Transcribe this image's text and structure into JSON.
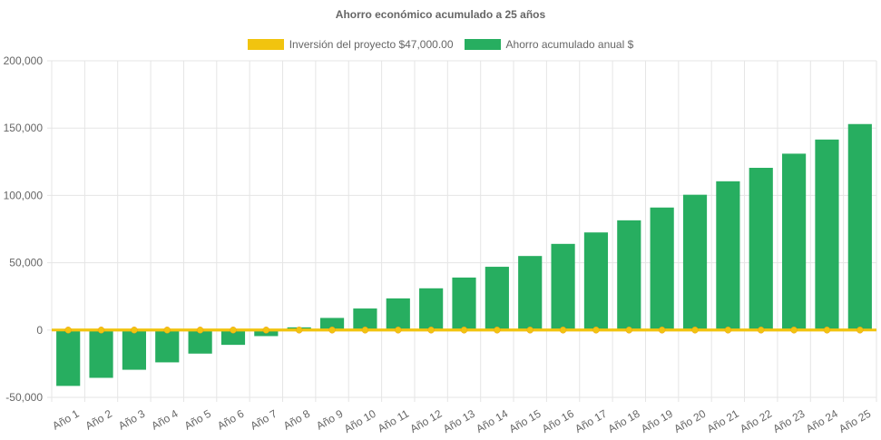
{
  "chart_data": {
    "type": "bar",
    "title": "Ahorro económico acumulado a 25 años",
    "categories": [
      "Año 1",
      "Año 2",
      "Año 3",
      "Año 4",
      "Año 5",
      "Año 6",
      "Año 7",
      "Año 8",
      "Año 9",
      "Año 10",
      "Año 11",
      "Año 12",
      "Año 13",
      "Año 14",
      "Año 15",
      "Año 16",
      "Año 17",
      "Año 18",
      "Año 19",
      "Año 20",
      "Año 21",
      "Año 22",
      "Año 23",
      "Año 24",
      "Año 25"
    ],
    "series": [
      {
        "name": "Inversión del proyecto $47,000.00",
        "type": "line",
        "color": "#f1c40f",
        "values": [
          0,
          0,
          0,
          0,
          0,
          0,
          0,
          0,
          0,
          0,
          0,
          0,
          0,
          0,
          0,
          0,
          0,
          0,
          0,
          0,
          0,
          0,
          0,
          0,
          0
        ]
      },
      {
        "name": "Ahorro acumulado anual $",
        "type": "bar",
        "color": "#27ae60",
        "values": [
          -41500,
          -35500,
          -29500,
          -24000,
          -17500,
          -11000,
          -4500,
          2000,
          9000,
          16000,
          23500,
          31000,
          39000,
          47000,
          55000,
          64000,
          72500,
          81500,
          91000,
          100500,
          110500,
          120500,
          131000,
          141500,
          153000
        ]
      }
    ],
    "yticks": [
      -50000,
      0,
      50000,
      100000,
      150000,
      200000
    ],
    "ytick_labels": [
      "-50,000",
      "0",
      "50,000",
      "100,000",
      "150,000",
      "200,000"
    ],
    "ylim": [
      -50000,
      200000
    ],
    "grid": true,
    "legend_position": "top"
  }
}
